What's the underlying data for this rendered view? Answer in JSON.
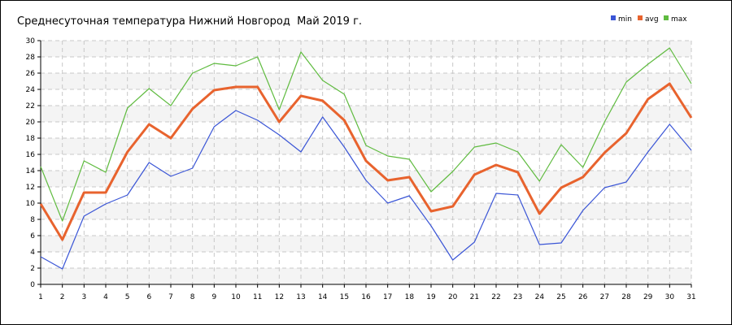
{
  "chart_data": {
    "type": "line",
    "title": "Среднесуточная температура Нижний Новгород  Май 2019 г.",
    "xlabel": "",
    "ylabel": "",
    "x": [
      1,
      2,
      3,
      4,
      5,
      6,
      7,
      8,
      9,
      10,
      11,
      12,
      13,
      14,
      15,
      16,
      17,
      18,
      19,
      20,
      21,
      22,
      23,
      24,
      25,
      26,
      27,
      28,
      29,
      30,
      31
    ],
    "ylim": [
      0,
      30
    ],
    "y_ticks": [
      0,
      2,
      4,
      6,
      8,
      10,
      12,
      14,
      16,
      18,
      20,
      22,
      24,
      26,
      28,
      30
    ],
    "grid": true,
    "legend_position": "top-right",
    "series": [
      {
        "name": "min",
        "color": "#3a55d6",
        "values": [
          3.4,
          1.9,
          8.4,
          9.9,
          11.0,
          15.0,
          13.3,
          14.3,
          19.4,
          21.4,
          20.2,
          18.4,
          16.3,
          20.6,
          16.9,
          12.8,
          10.0,
          10.9,
          7.2,
          3.0,
          5.2,
          11.2,
          11.0,
          4.9,
          5.1,
          9.1,
          11.9,
          12.6,
          16.3,
          19.7,
          16.5
        ]
      },
      {
        "name": "avg",
        "color": "#e8632e",
        "values": [
          9.9,
          5.5,
          11.3,
          11.3,
          16.3,
          19.7,
          18.0,
          21.6,
          23.9,
          24.3,
          24.3,
          20.0,
          23.2,
          22.6,
          20.2,
          15.2,
          12.8,
          13.2,
          9.0,
          9.6,
          13.5,
          14.7,
          13.8,
          8.7,
          11.9,
          13.2,
          16.2,
          18.6,
          22.8,
          24.7,
          20.5
        ]
      },
      {
        "name": "max",
        "color": "#5fbb3f",
        "values": [
          14.5,
          7.8,
          15.2,
          13.8,
          21.7,
          24.1,
          22.0,
          26.0,
          27.2,
          26.9,
          28.0,
          21.5,
          28.6,
          25.1,
          23.4,
          17.1,
          15.8,
          15.4,
          11.4,
          13.9,
          16.9,
          17.4,
          16.3,
          12.7,
          17.2,
          14.4,
          20.0,
          24.9,
          27.1,
          29.1,
          24.7
        ]
      }
    ]
  }
}
